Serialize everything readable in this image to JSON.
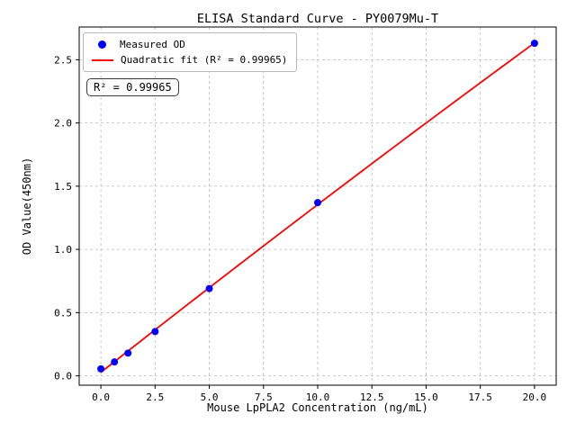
{
  "chart_data": {
    "type": "scatter",
    "title": "ELISA Standard Curve - PY0079Mu-T",
    "xlabel": "Mouse LpPLA2 Concentration (ng/mL)",
    "ylabel": "OD Value(450nm)",
    "x": [
      0,
      0.625,
      1.25,
      2.5,
      5,
      10,
      20
    ],
    "y": [
      0.055,
      0.11,
      0.18,
      0.35,
      0.69,
      1.37,
      2.63
    ],
    "fit": {
      "type": "quadratic",
      "r_squared": "0.99965"
    },
    "xlim": [
      -1,
      21
    ],
    "ylim": [
      -0.074,
      2.759
    ],
    "x_ticks": [
      0.0,
      2.5,
      5.0,
      7.5,
      10.0,
      12.5,
      15.0,
      17.5,
      20.0
    ],
    "y_ticks": [
      0.0,
      0.5,
      1.0,
      1.5,
      2.0,
      2.5
    ],
    "grid": true,
    "legend": {
      "position": "upper-left",
      "entries": [
        {
          "label": "Measured OD",
          "marker": "circle",
          "color": "#0000ff"
        },
        {
          "label": "Quadratic fit (R² = 0.99965)",
          "marker": "line",
          "color": "#ff0000"
        }
      ]
    },
    "annotation": "R² = 0.99965",
    "colors": {
      "points": "#0000ff",
      "fit_line": "#ff0000",
      "grid": "#bbbbbb",
      "frame": "#000000"
    }
  }
}
